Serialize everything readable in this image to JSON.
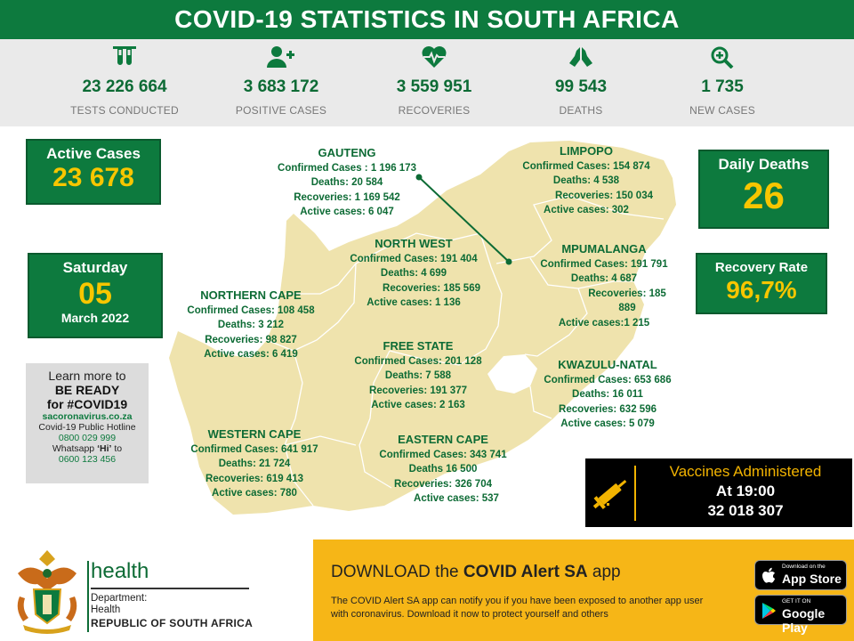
{
  "header": {
    "title": "COVID-19 STATISTICS IN SOUTH AFRICA"
  },
  "stats": [
    {
      "icon": "test-tubes-icon",
      "value": "23 226 664",
      "label": "TESTS CONDUCTED"
    },
    {
      "icon": "add-user-icon",
      "value": "3 683 172",
      "label": "POSITIVE CASES"
    },
    {
      "icon": "heartbeat-icon",
      "value": "3 559 951",
      "label": "RECOVERIES"
    },
    {
      "icon": "praying-hands-icon",
      "value": "99 543",
      "label": "DEATHS"
    },
    {
      "icon": "zoom-plus-icon",
      "value": "1 735",
      "label": "NEW CASES"
    }
  ],
  "active_cases": {
    "label": "Active Cases",
    "value": "23 678"
  },
  "date": {
    "day": "Saturday",
    "number": "05",
    "month_year": "March 2022"
  },
  "daily_deaths": {
    "label": "Daily Deaths",
    "value": "26"
  },
  "recovery_rate": {
    "label": "Recovery Rate",
    "value": "96,7%"
  },
  "info": {
    "line1": "Learn more to",
    "line2": "BE READY",
    "line3": "for #COVID19",
    "website": "sacoronavirus.co.za",
    "hotline_label": "Covid-19 Public Hotline",
    "hotline": "0800 029 999",
    "whatsapp_pre": "Whatsapp ",
    "whatsapp_word": "‘Hi’",
    "whatsapp_post": " to",
    "whatsapp_number": "0600 123 456"
  },
  "provinces": {
    "gauteng": {
      "name": "GAUTENG",
      "l1": "Confirmed Cases : 1 196 173",
      "l2": "Deaths: 20 584",
      "l3": "Recoveries: 1 169 542",
      "l4": "Active cases: 6 047"
    },
    "limpopo": {
      "name": "LIMPOPO",
      "l1": "Confirmed Cases: 154 874",
      "l2": "Deaths:  4 538",
      "l3": "Recoveries: 150 034",
      "l4": "Active cases: 302"
    },
    "north_west": {
      "name": "NORTH WEST",
      "l1": "Confirmed Cases: 191 404",
      "l2": "Deaths:  4 699",
      "l3": "Recoveries: 185 569",
      "l4": "Active cases: 1 136"
    },
    "mpumalanga": {
      "name": "MPUMALANGA",
      "l1": "Confirmed Cases: 191 791",
      "l2": "Deaths:  4 687",
      "l3": "Recoveries: 185 889",
      "l4": "Active cases:1 215"
    },
    "northern_cape": {
      "name": "NORTHERN CAPE",
      "l1": "Confirmed Cases:  108 458",
      "l2": "Deaths: 3 212",
      "l3": "Recoveries: 98 827",
      "l4": "Active cases: 6 419"
    },
    "free_state": {
      "name": "FREE STATE",
      "l1": "Confirmed Cases: 201 128",
      "l2": "Deaths: 7 588",
      "l3": "Recoveries: 191 377",
      "l4": "Active cases: 2 163"
    },
    "kwazulu_natal": {
      "name": "KWAZULU-NATAL",
      "l1": "Confirmed Cases: 653 686",
      "l2": "Deaths: 16 011",
      "l3": "Recoveries: 632 596",
      "l4": "Active cases: 5 079"
    },
    "western_cape": {
      "name": "WESTERN CAPE",
      "l1": "Confirmed Cases: 641 917",
      "l2": "Deaths: 21 724",
      "l3": "Recoveries: 619 413",
      "l4": "Active cases: 780"
    },
    "eastern_cape": {
      "name": "EASTERN CAPE",
      "l1": "Confirmed Cases: 343 741",
      "l2": "Deaths 16 500",
      "l3": "Recoveries: 326 704",
      "l4": "Active cases: 537"
    }
  },
  "vaccines": {
    "title": "Vaccines Administered",
    "time": "At 19:00",
    "value": "32 018 307",
    "icon": "syringe-icon"
  },
  "footer": {
    "logo_icon": "coat-of-arms-icon",
    "health": "health",
    "dept1": "Department:",
    "dept2": "Health",
    "country": "REPUBLIC OF SOUTH AFRICA",
    "download_pre": "DOWNLOAD the ",
    "download_app": "COVID Alert SA",
    "download_post": " app",
    "description": "The COVID Alert SA app can notify you if you have been exposed to another app user with coronavirus. Download it now to protect yourself and others",
    "appstore_small": "Download on the",
    "appstore_big": "App Store",
    "googleplay_small": "GET IT ON",
    "googleplay_big": "Google Play"
  },
  "colors": {
    "green": "#0d7a3e",
    "yellow": "#f7c600",
    "map": "#efe3ad",
    "footer_yellow": "#f6b617"
  }
}
